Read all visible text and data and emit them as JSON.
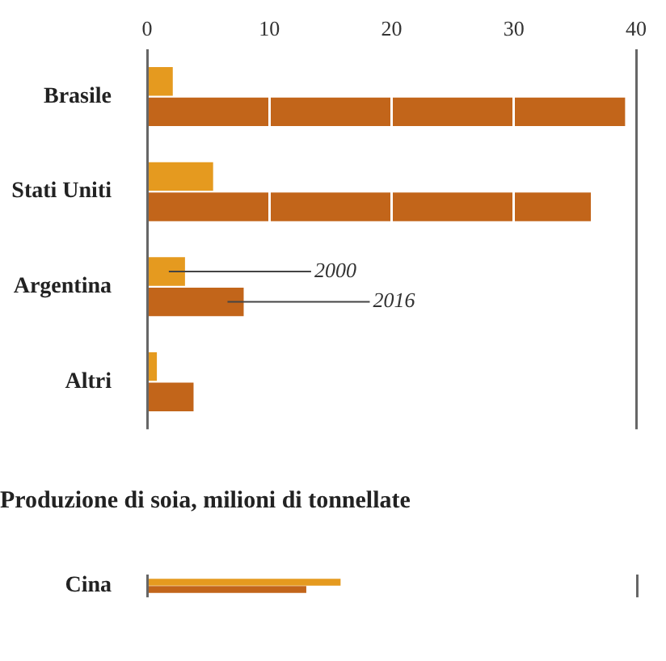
{
  "chart_data": [
    {
      "type": "bar",
      "orientation": "horizontal",
      "categories": [
        "Brasile",
        "Stati Uniti",
        "Argentina",
        "Altri"
      ],
      "series": [
        {
          "name": "2000",
          "color": "#e59a1f",
          "values": [
            2.1,
            5.4,
            3.1,
            0.8
          ]
        },
        {
          "name": "2016",
          "color": "#c2651a",
          "values": [
            39.1,
            36.3,
            7.9,
            3.8
          ]
        }
      ],
      "xlim": [
        0,
        40
      ],
      "xticks": [
        0,
        10,
        20,
        30,
        40
      ],
      "grid": "x"
    },
    {
      "type": "bar",
      "orientation": "horizontal",
      "title": "Produzione di soia, milioni di tonnellate",
      "categories": [
        "Cina"
      ],
      "series": [
        {
          "color": "#e59a1f",
          "values": [
            15.8
          ]
        },
        {
          "color": "#c2651a",
          "values": [
            13.0
          ]
        }
      ],
      "xlim": [
        0,
        40
      ],
      "tick_labels": "y",
      "grid": "x"
    }
  ]
}
